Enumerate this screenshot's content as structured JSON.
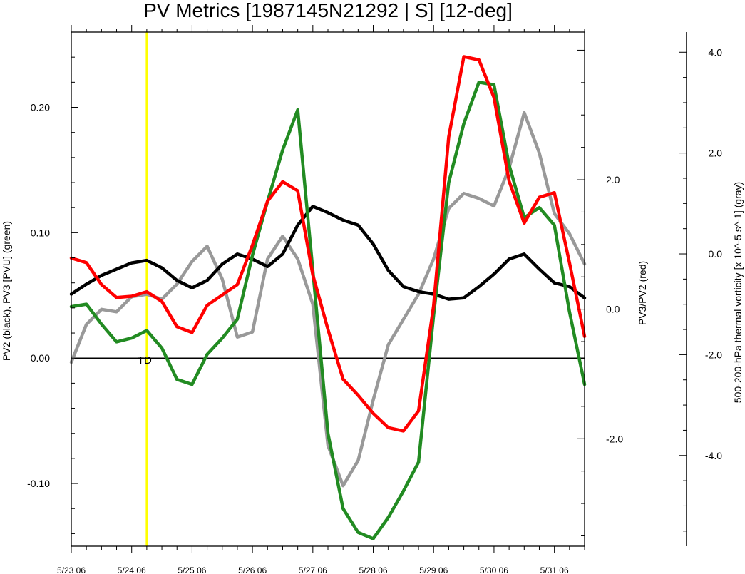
{
  "chart_data": {
    "type": "line",
    "title": "PV Metrics [1987145N21292 | S] [12-deg]",
    "left_axis": {
      "label": "PV2 (black), PV3 [PVU] (green)",
      "ylim": [
        -0.15,
        0.26
      ],
      "major_ticks": [
        -0.1,
        0.0,
        0.1,
        0.2
      ],
      "tick_labels": [
        "-0.10",
        "0.00",
        "0.10",
        "0.20"
      ]
    },
    "right_axis": {
      "label": "PV3/PV2 (red)",
      "ylim": [
        -3.66,
        4.28
      ],
      "major_ticks": [
        -2.0,
        0.0,
        2.0
      ],
      "tick_labels": [
        "-2.0",
        "0.0",
        "2.0"
      ]
    },
    "far_right_axis": {
      "label": "500-200-hPa thermal vorticity [x 10^-5 s^-1] (gray)",
      "ylim": [
        -5.8,
        4.4
      ],
      "major_ticks": [
        -4.0,
        -2.0,
        0.0,
        2.0,
        4.0
      ],
      "tick_labels": [
        "-4.0",
        "-2.0",
        "0.0",
        "2.0",
        "4.0"
      ]
    },
    "x_axis": {
      "xlim": [
        0,
        8.5
      ],
      "major_ticks": [
        0,
        1,
        2,
        3,
        4,
        5,
        6,
        7,
        8
      ],
      "tick_labels": [
        "5/23 06",
        "5/24 06",
        "5/25 06",
        "5/26 06",
        "5/27 06",
        "5/28 06",
        "5/29 06",
        "5/30 06",
        "5/31 06"
      ]
    },
    "reference_line": {
      "y": 0.0,
      "axis": "left",
      "color": "#000000"
    },
    "event_marker": {
      "x": 1.25,
      "label": "TD",
      "color": "#ffff00"
    },
    "x": [
      0,
      0.25,
      0.5,
      0.75,
      1.0,
      1.25,
      1.5,
      1.75,
      2.0,
      2.25,
      2.5,
      2.75,
      3.0,
      3.25,
      3.5,
      3.75,
      4.0,
      4.25,
      4.5,
      4.75,
      5.0,
      5.25,
      5.5,
      5.75,
      6.0,
      6.25,
      6.5,
      6.75,
      7.0,
      7.25,
      7.5,
      7.75,
      8.0,
      8.25,
      8.5
    ],
    "series": [
      {
        "axis": "left",
        "color": "#000000",
        "width": 4.5,
        "values": [
          0.051,
          0.059,
          0.066,
          0.071,
          0.076,
          0.078,
          0.072,
          0.062,
          0.056,
          0.062,
          0.075,
          0.083,
          0.079,
          0.073,
          0.083,
          0.106,
          0.121,
          0.116,
          0.11,
          0.106,
          0.091,
          0.07,
          0.057,
          0.053,
          0.051,
          0.047,
          0.048,
          0.057,
          0.067,
          0.079,
          0.083,
          0.071,
          0.06,
          0.057,
          0.048
        ]
      },
      {
        "axis": "left",
        "color": "#228b22",
        "width": 4.5,
        "values": [
          0.041,
          0.043,
          0.027,
          0.013,
          0.016,
          0.022,
          0.008,
          -0.017,
          -0.021,
          0.003,
          0.016,
          0.031,
          0.082,
          0.125,
          0.166,
          0.198,
          0.07,
          -0.06,
          -0.12,
          -0.139,
          -0.144,
          -0.127,
          -0.106,
          -0.083,
          0.034,
          0.14,
          0.187,
          0.22,
          0.218,
          0.154,
          0.112,
          0.12,
          0.106,
          0.037,
          -0.021
        ]
      },
      {
        "axis": "right",
        "color": "#ff0000",
        "width": 4.5,
        "values": [
          0.79,
          0.72,
          0.38,
          0.18,
          0.2,
          0.27,
          0.12,
          -0.27,
          -0.36,
          0.06,
          0.22,
          0.38,
          0.99,
          1.67,
          1.97,
          1.83,
          0.53,
          -0.31,
          -1.08,
          -1.33,
          -1.61,
          -1.83,
          -1.88,
          -1.57,
          0.05,
          2.66,
          3.9,
          3.85,
          3.27,
          1.98,
          1.33,
          1.73,
          1.8,
          0.72,
          -0.42
        ]
      },
      {
        "axis": "far_right",
        "color": "#999999",
        "width": 4.5,
        "values": [
          -2.15,
          -1.4,
          -1.1,
          -1.15,
          -0.85,
          -0.8,
          -0.9,
          -0.6,
          -0.15,
          0.15,
          -0.5,
          -1.65,
          -1.55,
          -0.1,
          0.35,
          -0.1,
          -1.0,
          -3.8,
          -4.6,
          -4.1,
          -2.9,
          -1.8,
          -1.3,
          -0.8,
          -0.1,
          0.9,
          1.2,
          1.1,
          0.95,
          1.7,
          2.8,
          2.0,
          0.8,
          0.4,
          -0.2
        ]
      }
    ]
  }
}
